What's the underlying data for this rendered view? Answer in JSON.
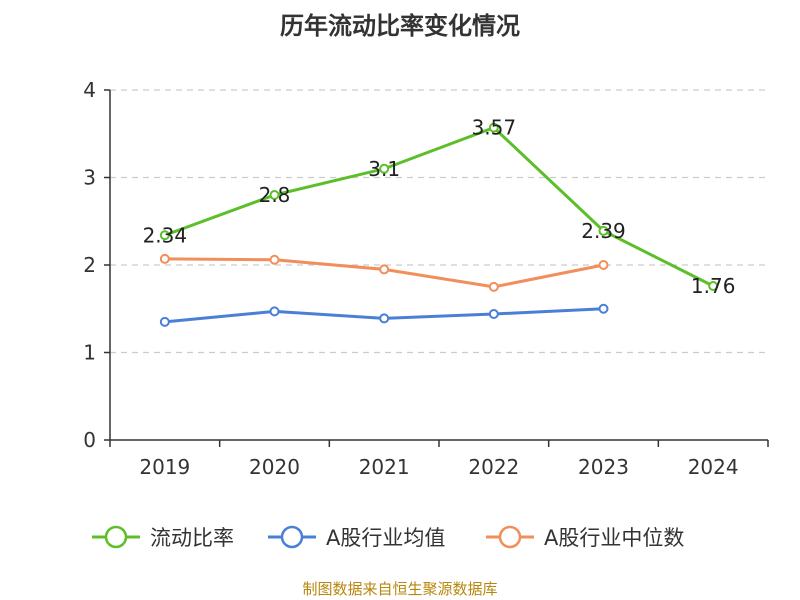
{
  "chart_data": {
    "type": "line",
    "title": "历年流动比率变化情况",
    "categories": [
      "2019",
      "2020",
      "2021",
      "2022",
      "2023",
      "2024"
    ],
    "ylim": [
      0,
      4
    ],
    "yticks": [
      0,
      1,
      2,
      3,
      4
    ],
    "grid": true,
    "legend_position": "bottom",
    "series": [
      {
        "name": "流动比率",
        "color": "#5cbf2a",
        "values": [
          2.34,
          2.8,
          3.1,
          3.57,
          2.39,
          1.76
        ],
        "data_labels": [
          "2.34",
          "2.8",
          "3.1",
          "3.57",
          "2.39",
          "1.76"
        ]
      },
      {
        "name": "A股行业均值",
        "color": "#4a7fd6",
        "values": [
          1.35,
          1.47,
          1.39,
          1.44,
          1.5,
          null
        ]
      },
      {
        "name": "A股行业中位数",
        "color": "#f28e5a",
        "values": [
          2.07,
          2.06,
          1.95,
          1.75,
          2.0,
          null
        ]
      }
    ]
  },
  "source_text": "制图数据来自恒生聚源数据库"
}
